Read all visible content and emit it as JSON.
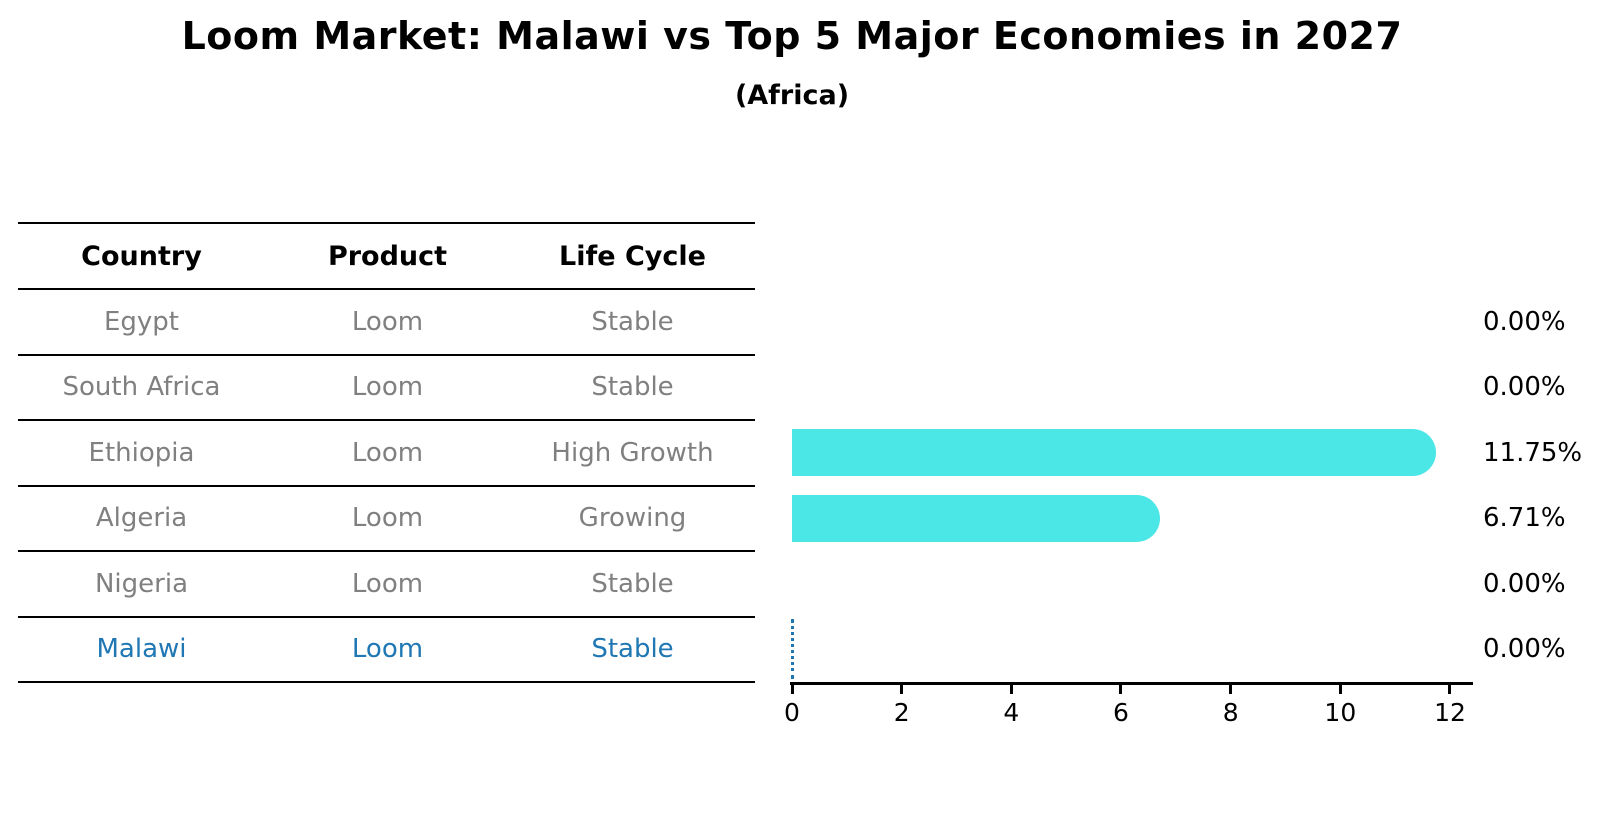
{
  "title": "Loom Market: Malawi vs Top 5 Major Economies in 2027",
  "subtitle": "(Africa)",
  "colors": {
    "bar": "#4BE6E6",
    "highlight": "#1f77b4",
    "row_text": "#808080",
    "header_text": "#000000",
    "axis": "#000000"
  },
  "table": {
    "columns": [
      "Country",
      "Product",
      "Life Cycle"
    ],
    "rows": [
      {
        "country": "Egypt",
        "product": "Loom",
        "life_cycle": "Stable",
        "highlighted": false
      },
      {
        "country": "South Africa",
        "product": "Loom",
        "life_cycle": "Stable",
        "highlighted": false
      },
      {
        "country": "Ethiopia",
        "product": "Loom",
        "life_cycle": "High Growth",
        "highlighted": false
      },
      {
        "country": "Algeria",
        "product": "Loom",
        "life_cycle": "Growing",
        "highlighted": false
      },
      {
        "country": "Nigeria",
        "product": "Loom",
        "life_cycle": "Stable",
        "highlighted": false
      },
      {
        "country": "Malawi",
        "product": "Loom",
        "life_cycle": "Stable",
        "highlighted": true
      }
    ]
  },
  "chart_data": {
    "type": "bar",
    "orientation": "horizontal",
    "title": "Loom Market: Malawi vs Top 5 Major Economies in 2027",
    "subtitle": "(Africa)",
    "categories": [
      "Egypt",
      "South Africa",
      "Ethiopia",
      "Algeria",
      "Nigeria",
      "Malawi"
    ],
    "values": [
      0,
      0,
      11.75,
      6.71,
      0,
      0
    ],
    "value_labels": [
      "0.00%",
      "0.00%",
      "11.75%",
      "6.71%",
      "0.00%",
      "0.00%"
    ],
    "xlabel": "",
    "ylabel": "",
    "xlim": [
      0,
      12
    ],
    "xticks": [
      0,
      2,
      4,
      6,
      8,
      10,
      12
    ],
    "grid": false,
    "legend": false,
    "bar_color": "#4BE6E6",
    "highlight_category": "Malawi",
    "highlight_marker": "dotted-vertical-line-at-value"
  }
}
